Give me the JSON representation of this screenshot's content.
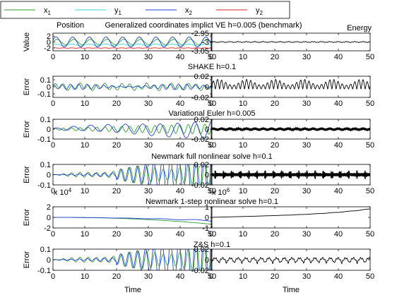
{
  "colors": {
    "x1": "#2ca02c",
    "y1": "#40d0e0",
    "x2": "#1f3fd0",
    "y2": "#e02020",
    "energy": "#000000"
  },
  "legend": {
    "x1": "x",
    "x1_sub": "1",
    "y1": "y",
    "y1_sub": "1",
    "x2": "x",
    "x2_sub": "2",
    "y2": "y",
    "y2_sub": "2"
  },
  "chart_data": [
    {
      "type": "line",
      "title": "Generalized coordinates implict VE h=0.005 (benchmark)",
      "left_title": "Position",
      "right_title": "Energy",
      "ylabel": "Value",
      "left_ylim": [
        -3,
        3
      ],
      "left_yticks": [
        "2",
        "0",
        "-2"
      ],
      "right_ylim": [
        -3.05,
        -2.95
      ],
      "right_yticks": [
        "-2.95",
        "-3",
        "-3.05"
      ],
      "xlim": [
        0,
        50
      ],
      "xticks": [
        "0",
        "10",
        "20",
        "30",
        "40",
        "50"
      ],
      "xlabel": ""
    },
    {
      "type": "line",
      "title": "SHAKE h=0.1",
      "ylabel": "Error",
      "left_ylim": [
        -0.15,
        0.15
      ],
      "left_yticks": [
        "0.1",
        "0",
        "-0.1"
      ],
      "right_ylim": [
        -0.02,
        0.02
      ],
      "right_yticks": [
        "0.02",
        "0",
        "-0.02"
      ],
      "xlim": [
        0,
        50
      ],
      "xticks": [
        "0",
        "10",
        "20",
        "30",
        "40",
        "50"
      ],
      "xlabel": ""
    },
    {
      "type": "line",
      "title": "Variational Euler h=0.005",
      "ylabel": "Error",
      "left_ylim": [
        -0.1,
        0.1
      ],
      "left_yticks": [
        "0.1",
        "0",
        "-0.1"
      ],
      "right_ylim": [
        -0.02,
        0.02
      ],
      "right_yticks": [
        "0.02",
        "0",
        "-0.02"
      ],
      "xlim": [
        0,
        50
      ],
      "xticks": [
        "0",
        "10",
        "20",
        "30",
        "40",
        "50"
      ],
      "xlabel": ""
    },
    {
      "type": "line",
      "title": "Newmark full nonlinear solve h=0.1",
      "ylabel": "Error",
      "left_ylim": [
        -0.1,
        0.1
      ],
      "left_yticks": [
        "0.1",
        "0",
        "-0.1"
      ],
      "right_ylim": [
        -0.02,
        0.02
      ],
      "right_yticks": [
        "0.02",
        "0",
        "-0.02"
      ],
      "xlim": [
        0,
        50
      ],
      "xticks": [
        "0",
        "10",
        "20",
        "30",
        "40",
        "50"
      ],
      "xlabel": ""
    },
    {
      "type": "line",
      "title": "Newmark 1-step nonlinear solve h=0.1",
      "ylabel": "Error",
      "left_ylim": [
        -2,
        2
      ],
      "left_yticks": [
        "2",
        "0",
        "-2"
      ],
      "left_scale": "x 10",
      "left_scale_exp": "4",
      "right_ylim": [
        -1,
        1
      ],
      "right_yticks": [
        "1",
        "0",
        "-1"
      ],
      "right_scale": "x 10",
      "right_scale_exp": "6",
      "xlim": [
        0,
        50
      ],
      "xticks": [
        "0",
        "10",
        "20",
        "30",
        "40",
        "50"
      ],
      "xlabel": ""
    },
    {
      "type": "line",
      "title": "Z&S h=0.1",
      "ylabel": "Error",
      "left_ylim": [
        -0.1,
        0.1
      ],
      "left_yticks": [
        "0.1",
        "0",
        "-0.1"
      ],
      "right_ylim": [
        -0.02,
        0.02
      ],
      "right_yticks": [
        "0.02",
        "0",
        "-0.02"
      ],
      "xlim": [
        0,
        50
      ],
      "xticks": [
        "0",
        "10",
        "20",
        "30",
        "40",
        "50"
      ],
      "xlabel": "Time"
    }
  ]
}
